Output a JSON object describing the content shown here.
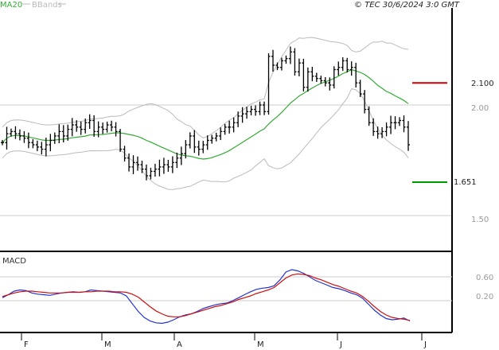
{
  "header": {
    "legend_ma": "MA20",
    "legend_bb": "BBands",
    "copyright": "© TEC 30/6/2024 3:0 GMT"
  },
  "colors": {
    "price_bars": "#000000",
    "ma20": "#33aa33",
    "bbands": "#bbbbbb",
    "resistance": "#cc0000",
    "support": "#009900",
    "macd_line": "#2233cc",
    "signal_line": "#cc1111",
    "grid": "#cccccc",
    "frame": "#000000"
  },
  "chart_data": [
    {
      "type": "ohlc",
      "panel": "price",
      "y_axis_labels": [
        "2.00",
        "1.50"
      ],
      "x_labels": [
        "F",
        "M",
        "A",
        "M",
        "J",
        "J"
      ],
      "levels": [
        {
          "label": "2.100",
          "value": 2.1,
          "color": "#cc0000"
        },
        {
          "label": "1.651",
          "value": 1.651,
          "color": "#009900"
        }
      ],
      "series": [
        {
          "name": "MA20"
        },
        {
          "name": "BBands"
        }
      ],
      "close": [
        1.83,
        1.87,
        1.88,
        1.87,
        1.86,
        1.85,
        1.83,
        1.82,
        1.81,
        1.8,
        1.82,
        1.84,
        1.86,
        1.88,
        1.86,
        1.89,
        1.91,
        1.9,
        1.89,
        1.92,
        1.93,
        1.88,
        1.9,
        1.89,
        1.91,
        1.9,
        1.88,
        1.8,
        1.76,
        1.72,
        1.74,
        1.73,
        1.71,
        1.68,
        1.7,
        1.71,
        1.72,
        1.73,
        1.72,
        1.74,
        1.76,
        1.78,
        1.82,
        1.86,
        1.81,
        1.8,
        1.82,
        1.84,
        1.85,
        1.86,
        1.88,
        1.9,
        1.9,
        1.92,
        1.95,
        1.96,
        1.97,
        1.98,
        1.97,
        2.0,
        1.97,
        2.22,
        2.18,
        2.17,
        2.2,
        2.21,
        2.24,
        2.15,
        2.19,
        2.08,
        2.15,
        2.13,
        2.12,
        2.11,
        2.1,
        2.09,
        2.16,
        2.17,
        2.2,
        2.16,
        2.17,
        2.1,
        2.05,
        1.98,
        1.92,
        1.88,
        1.87,
        1.88,
        1.9,
        1.92,
        1.92,
        1.93,
        1.9,
        1.82
      ]
    },
    {
      "type": "line",
      "panel": "indicator",
      "title": "MACD",
      "y_axis_labels": [
        "0.60",
        "0.20"
      ],
      "series": [
        {
          "name": "MACD",
          "color": "#2233cc",
          "values": [
            0.25,
            0.3,
            0.36,
            0.38,
            0.37,
            0.33,
            0.31,
            0.3,
            0.29,
            0.31,
            0.33,
            0.34,
            0.35,
            0.34,
            0.35,
            0.38,
            0.37,
            0.36,
            0.35,
            0.34,
            0.33,
            0.28,
            0.15,
            0.02,
            -0.08,
            -0.14,
            -0.17,
            -0.18,
            -0.16,
            -0.12,
            -0.07,
            -0.04,
            -0.02,
            0.02,
            0.07,
            0.1,
            0.13,
            0.15,
            0.16,
            0.2,
            0.25,
            0.3,
            0.35,
            0.39,
            0.41,
            0.42,
            0.45,
            0.55,
            0.68,
            0.72,
            0.7,
            0.66,
            0.6,
            0.54,
            0.5,
            0.46,
            0.42,
            0.4,
            0.37,
            0.33,
            0.3,
            0.24,
            0.14,
            0.04,
            -0.04,
            -0.1,
            -0.12,
            -0.11,
            -0.09,
            -0.14
          ]
        },
        {
          "name": "Signal",
          "color": "#cc1111",
          "values": [
            0.27,
            0.3,
            0.33,
            0.35,
            0.36,
            0.36,
            0.35,
            0.34,
            0.33,
            0.33,
            0.33,
            0.34,
            0.34,
            0.34,
            0.35,
            0.35,
            0.36,
            0.36,
            0.36,
            0.35,
            0.35,
            0.34,
            0.31,
            0.26,
            0.18,
            0.1,
            0.03,
            -0.02,
            -0.06,
            -0.07,
            -0.07,
            -0.05,
            -0.02,
            0.01,
            0.04,
            0.07,
            0.1,
            0.12,
            0.15,
            0.18,
            0.22,
            0.25,
            0.28,
            0.32,
            0.35,
            0.38,
            0.42,
            0.5,
            0.58,
            0.63,
            0.65,
            0.64,
            0.62,
            0.58,
            0.55,
            0.51,
            0.47,
            0.44,
            0.4,
            0.36,
            0.33,
            0.27,
            0.19,
            0.1,
            0.02,
            -0.04,
            -0.08,
            -0.1,
            -0.11,
            -0.13
          ]
        }
      ]
    }
  ]
}
